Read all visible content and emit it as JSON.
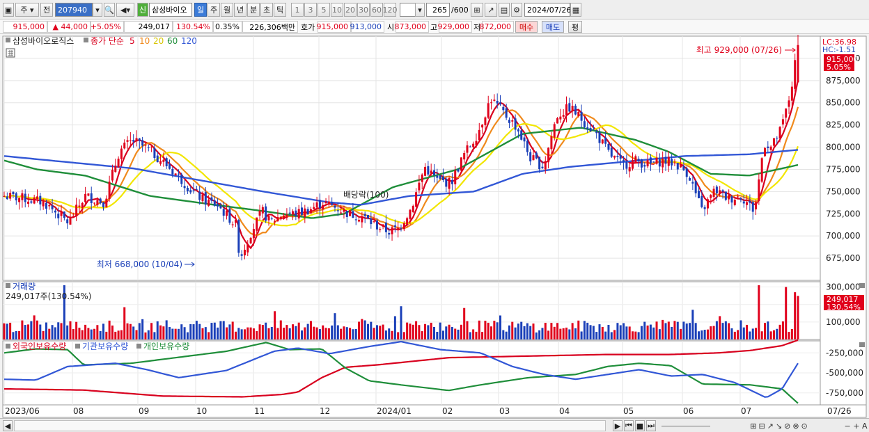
{
  "toolbar": {
    "market_label": "주",
    "prev_label": "전",
    "code": "207940",
    "stock_badge": "신",
    "stock_name": "삼성바이오",
    "periods": [
      "일",
      "주",
      "월",
      "년",
      "분",
      "초",
      "틱"
    ],
    "active_period": "일",
    "intervals": [
      "1",
      "3",
      "5",
      "10",
      "20",
      "30",
      "60",
      "120"
    ],
    "range_value": "265",
    "range_total": "/600",
    "date": "2024/07/26"
  },
  "quote": {
    "price": "915,000",
    "change": "44,000",
    "change_pct": "+5.05%",
    "volume": "249,017",
    "volume_pct": "130.54%",
    "turnover": "0.35%",
    "amount": "226,306백만",
    "hoga_label": "호가",
    "ask": "915,000",
    "bid": "913,000",
    "open_label": "시",
    "open": "873,000",
    "high_label": "고",
    "high": "929,000",
    "low_label": "저",
    "low": "872,000",
    "buy_label": "매수",
    "sell_label": "매도",
    "avg_label": "평"
  },
  "legend": {
    "name": "삼성바이오로직스",
    "ma_prefix": "종가 단순",
    "ma_periods": [
      "5",
      "10",
      "20",
      "60",
      "120"
    ],
    "ma_colors": [
      "#d8001e",
      "#f08a1c",
      "#f2e600",
      "#1f8e3a",
      "#3257d6"
    ]
  },
  "labels": {
    "lc": "LC:36.98",
    "hc": "HC:-1.51",
    "price_tag": "915,000",
    "pct_tag": "5.05%",
    "high_annot": "최고 929,000 (07/26)",
    "low_annot": "최저 668,000 (10/04)",
    "dividend": "배당락(100)",
    "volume_title": "거래량",
    "volume_value": "249,017주(130.54%)",
    "volume_tag": "249,017",
    "volume_pct_tag": "130.54%",
    "holder_titles": [
      "외국인보유수량",
      "기관보유수량",
      "개인보유수량"
    ]
  },
  "chart_data": [
    {
      "type": "candlestick",
      "title": "삼성바이오로직스",
      "y_ticks": [
        "675,000",
        "700,000",
        "725,000",
        "750,000",
        "775,000",
        "800,000",
        "825,000",
        "850,000",
        "875,000",
        "900,000"
      ],
      "ylim": [
        650000,
        925000
      ],
      "x_ticks": [
        "2023/06",
        "08",
        "09",
        "10",
        "11",
        "12",
        "2024/01",
        "02",
        "03",
        "04",
        "05",
        "06",
        "07",
        "07/26"
      ],
      "close_path": [
        [
          "2023/06/01",
          745000
        ],
        [
          "2023/06/12",
          742000
        ],
        [
          "2023/06/22",
          738000
        ],
        [
          "2023/07/05",
          715000
        ],
        [
          "2023/07/14",
          745000
        ],
        [
          "2023/07/24",
          738000
        ],
        [
          "2023/08/01",
          795000
        ],
        [
          "2023/08/08",
          808000
        ],
        [
          "2023/08/18",
          795000
        ],
        [
          "2023/08/25",
          782000
        ],
        [
          "2023/09/01",
          768000
        ],
        [
          "2023/09/08",
          752000
        ],
        [
          "2023/09/15",
          740000
        ],
        [
          "2023/09/22",
          735000
        ],
        [
          "2023/10/02",
          712000
        ],
        [
          "2023/10/04",
          675000
        ],
        [
          "2023/10/10",
          705000
        ],
        [
          "2023/10/16",
          728000
        ],
        [
          "2023/10/20",
          715000
        ],
        [
          "2023/10/27",
          725000
        ],
        [
          "2023/11/03",
          725000
        ],
        [
          "2023/11/10",
          730000
        ],
        [
          "2023/11/17",
          738000
        ],
        [
          "2023/11/24",
          732000
        ],
        [
          "2023/12/01",
          725000
        ],
        [
          "2023/12/08",
          722000
        ],
        [
          "2023/12/15",
          712000
        ],
        [
          "2023/12/22",
          705000
        ],
        [
          "2023/12/27",
          708000
        ],
        [
          "2024/01/03",
          732000
        ],
        [
          "2024/01/10",
          778000
        ],
        [
          "2024/01/17",
          762000
        ],
        [
          "2024/01/24",
          760000
        ],
        [
          "2024/01/31",
          792000
        ],
        [
          "2024/02/07",
          815000
        ],
        [
          "2024/02/14",
          855000
        ],
        [
          "2024/02/21",
          838000
        ],
        [
          "2024/02/28",
          822000
        ],
        [
          "2024/03/06",
          788000
        ],
        [
          "2024/03/13",
          778000
        ],
        [
          "2024/03/20",
          835000
        ],
        [
          "2024/03/27",
          845000
        ],
        [
          "2024/04/03",
          830000
        ],
        [
          "2024/04/10",
          815000
        ],
        [
          "2024/04/17",
          792000
        ],
        [
          "2024/04/24",
          780000
        ],
        [
          "2024/05/01",
          785000
        ],
        [
          "2024/05/08",
          780000
        ],
        [
          "2024/05/15",
          785000
        ],
        [
          "2024/05/22",
          782000
        ],
        [
          "2024/05/29",
          770000
        ],
        [
          "2024/06/05",
          728000
        ],
        [
          "2024/06/12",
          752000
        ],
        [
          "2024/06/19",
          742000
        ],
        [
          "2024/06/26",
          745000
        ],
        [
          "2024/07/03",
          728000
        ],
        [
          "2024/07/08",
          805000
        ],
        [
          "2024/07/12",
          800000
        ],
        [
          "2024/07/17",
          820000
        ],
        [
          "2024/07/22",
          860000
        ],
        [
          "2024/07/26",
          915000
        ]
      ],
      "ohlc_last": {
        "open": 873000,
        "high": 929000,
        "low": 872000,
        "close": 915000
      },
      "series": [
        {
          "name": "5",
          "color": "#d8001e"
        },
        {
          "name": "10",
          "color": "#f08a1c"
        },
        {
          "name": "20",
          "color": "#f2e600"
        },
        {
          "name": "60",
          "color": "#1f8e3a",
          "values": [
            [
              0,
              785000
            ],
            [
              10,
              775000
            ],
            [
              25,
              768000
            ],
            [
              45,
              745000
            ],
            [
              65,
              735000
            ],
            [
              80,
              728000
            ],
            [
              95,
              720000
            ],
            [
              105,
              725000
            ],
            [
              120,
              755000
            ],
            [
              140,
              775000
            ],
            [
              160,
              815000
            ],
            [
              178,
              822000
            ],
            [
              195,
              808000
            ],
            [
              205,
              795000
            ],
            [
              218,
              770000
            ],
            [
              230,
              768000
            ],
            [
              245,
              780000
            ]
          ]
        },
        {
          "name": "120",
          "color": "#3257d6",
          "values": [
            [
              0,
              790000
            ],
            [
              20,
              783000
            ],
            [
              40,
              776000
            ],
            [
              60,
              763000
            ],
            [
              80,
              750000
            ],
            [
              100,
              738000
            ],
            [
              110,
              735000
            ],
            [
              125,
              745000
            ],
            [
              145,
              750000
            ],
            [
              160,
              770000
            ],
            [
              175,
              778000
            ],
            [
              190,
              783000
            ],
            [
              210,
              790000
            ],
            [
              230,
              792000
            ],
            [
              245,
              797000
            ]
          ]
        }
      ]
    },
    {
      "type": "bar",
      "title": "거래량",
      "y_ticks": [
        "100,000",
        "200,000",
        "300,000"
      ],
      "ylim": [
        0,
        330000
      ],
      "last_value": 249017
    },
    {
      "type": "line",
      "title": "보유수량",
      "y_ticks": [
        "-250,000",
        "-500,000",
        "-750,000"
      ],
      "ylim": [
        -900000,
        -100000
      ],
      "series": [
        {
          "name": "외국인보유수량",
          "color": "#d8001e",
          "values": [
            [
              0,
              -700000
            ],
            [
              50,
              -715000
            ],
            [
              100,
              -790000
            ],
            [
              150,
              -800000
            ],
            [
              175,
              -770000
            ],
            [
              185,
              -740000
            ],
            [
              200,
              -560000
            ],
            [
              215,
              -430000
            ],
            [
              235,
              -400000
            ],
            [
              280,
              -310000
            ],
            [
              330,
              -290000
            ],
            [
              380,
              -270000
            ],
            [
              420,
              -270000
            ],
            [
              450,
              -250000
            ],
            [
              470,
              -220000
            ],
            [
              490,
              -160000
            ],
            [
              500,
              -90000
            ]
          ]
        },
        {
          "name": "기관보유수량",
          "color": "#1f8e3a",
          "values": [
            [
              0,
              -250000
            ],
            [
              20,
              -200000
            ],
            [
              40,
              -210000
            ],
            [
              50,
              -400000
            ],
            [
              80,
              -380000
            ],
            [
              100,
              -330000
            ],
            [
              140,
              -230000
            ],
            [
              165,
              -120000
            ],
            [
              180,
              -210000
            ],
            [
              200,
              -200000
            ],
            [
              215,
              -440000
            ],
            [
              230,
              -600000
            ],
            [
              250,
              -650000
            ],
            [
              280,
              -720000
            ],
            [
              300,
              -650000
            ],
            [
              330,
              -560000
            ],
            [
              360,
              -520000
            ],
            [
              380,
              -420000
            ],
            [
              400,
              -380000
            ],
            [
              420,
              -410000
            ],
            [
              440,
              -640000
            ],
            [
              470,
              -650000
            ],
            [
              490,
              -700000
            ],
            [
              500,
              -880000
            ]
          ]
        },
        {
          "name": "개인보유수량",
          "color": "#3257d6",
          "values": [
            [
              0,
              -580000
            ],
            [
              20,
              -590000
            ],
            [
              40,
              -420000
            ],
            [
              70,
              -380000
            ],
            [
              90,
              -460000
            ],
            [
              110,
              -560000
            ],
            [
              140,
              -470000
            ],
            [
              170,
              -230000
            ],
            [
              185,
              -190000
            ],
            [
              205,
              -260000
            ],
            [
              230,
              -170000
            ],
            [
              250,
              -110000
            ],
            [
              275,
              -210000
            ],
            [
              300,
              -250000
            ],
            [
              320,
              -420000
            ],
            [
              340,
              -520000
            ],
            [
              360,
              -580000
            ],
            [
              380,
              -520000
            ],
            [
              400,
              -460000
            ],
            [
              420,
              -540000
            ],
            [
              440,
              -520000
            ],
            [
              460,
              -620000
            ],
            [
              480,
              -810000
            ],
            [
              490,
              -700000
            ],
            [
              500,
              -380000
            ]
          ]
        }
      ]
    }
  ]
}
